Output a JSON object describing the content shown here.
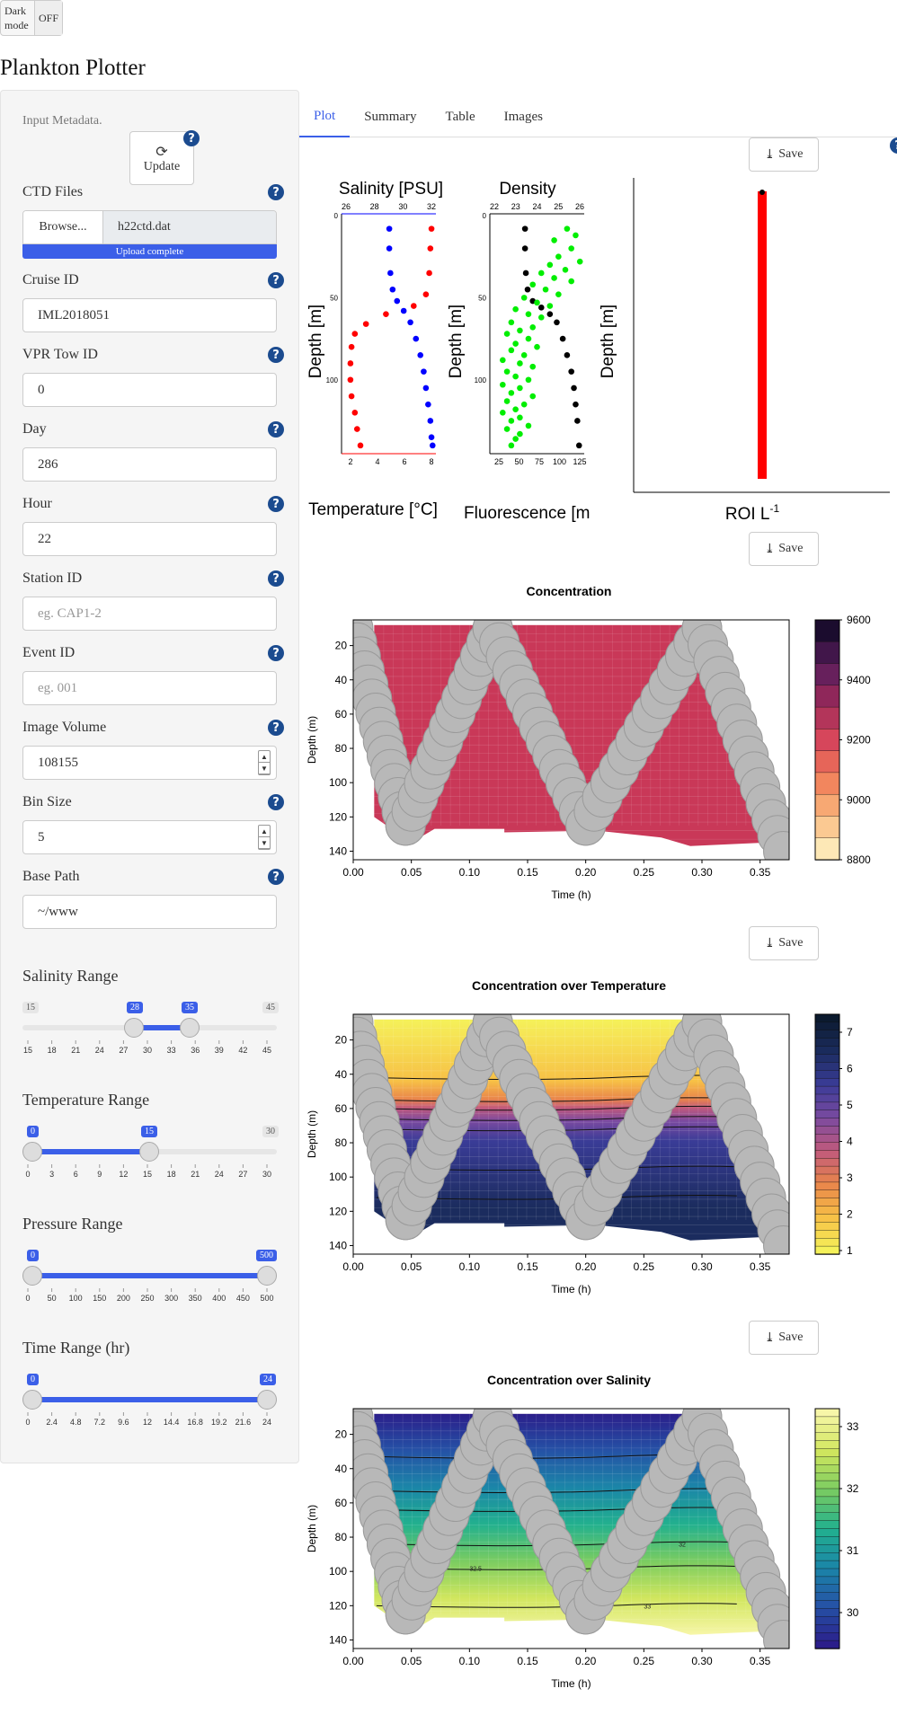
{
  "dark_mode": {
    "label": "Dark mode",
    "state": "OFF"
  },
  "app_title": "Plankton Plotter",
  "sidebar": {
    "input_metadata": "Input Metadata.",
    "update_label": "Update",
    "ctd_files": {
      "label": "CTD Files",
      "browse": "Browse...",
      "filename": "h22ctd.dat",
      "progress": "Upload complete"
    },
    "cruise_id": {
      "label": "Cruise ID",
      "value": "IML2018051"
    },
    "vpr_tow_id": {
      "label": "VPR Tow ID",
      "value": "0"
    },
    "day": {
      "label": "Day",
      "value": "286"
    },
    "hour": {
      "label": "Hour",
      "value": "22"
    },
    "station_id": {
      "label": "Station ID",
      "placeholder": "eg. CAP1-2"
    },
    "event_id": {
      "label": "Event ID",
      "placeholder": "eg. 001"
    },
    "image_volume": {
      "label": "Image Volume",
      "value": "108155"
    },
    "bin_size": {
      "label": "Bin Size",
      "value": "5"
    },
    "base_path": {
      "label": "Base Path",
      "value": "~/www"
    },
    "salinity_range": {
      "label": "Salinity Range",
      "min": "15",
      "max": "45",
      "from": "28",
      "to": "35",
      "ticks": [
        "15",
        "18",
        "21",
        "24",
        "27",
        "30",
        "33",
        "36",
        "39",
        "42",
        "45"
      ]
    },
    "temperature_range": {
      "label": "Temperature Range",
      "min": "0",
      "max": "30",
      "from": "0",
      "to": "15",
      "ticks": [
        "0",
        "3",
        "6",
        "9",
        "12",
        "15",
        "18",
        "21",
        "24",
        "27",
        "30"
      ]
    },
    "pressure_range": {
      "label": "Pressure Range",
      "min": "0",
      "max": "500",
      "from": "0",
      "to": "500",
      "ticks": [
        "0",
        "50",
        "100",
        "150",
        "200",
        "250",
        "300",
        "350",
        "400",
        "450",
        "500"
      ]
    },
    "time_range": {
      "label": "Time Range (hr)",
      "min": "0",
      "max": "24",
      "from": "0",
      "to": "24",
      "ticks": [
        "0",
        "2.4",
        "4.8",
        "7.2",
        "9.6",
        "12",
        "14.4",
        "16.8",
        "19.2",
        "21.6",
        "24"
      ]
    }
  },
  "tabs": [
    "Plot",
    "Summary",
    "Table",
    "Images"
  ],
  "save_label": "Save",
  "profiles": {
    "salinity_title": "Salinity [PSU]",
    "density_title": "Density",
    "temp_xlabel": "Temperature [°C]",
    "fluor_xlabel": "Fluorescence [m",
    "depth_label": "Depth [m]",
    "roi_xlabel": "ROI L",
    "roi_exp": "-1"
  },
  "chart_data": [
    {
      "type": "scatter",
      "title": "Salinity [PSU]",
      "xlabel": "Temperature [°C]",
      "ylabel": "Depth [m]",
      "top_ticks": [
        "26",
        "28",
        "30",
        "32"
      ],
      "bottom_ticks": [
        "2",
        "4",
        "6",
        "8"
      ],
      "y_ticks": [
        "0",
        "50",
        "100"
      ],
      "ylim": [
        0,
        145
      ],
      "series": [
        {
          "color": "#ff0000",
          "points": [
            [
              8.1,
              8
            ],
            [
              8.0,
              20
            ],
            [
              7.9,
              35
            ],
            [
              7.6,
              48
            ],
            [
              6.5,
              55
            ],
            [
              4.0,
              60
            ],
            [
              2.2,
              66
            ],
            [
              1.2,
              72
            ],
            [
              0.9,
              80
            ],
            [
              0.8,
              90
            ],
            [
              0.8,
              100
            ],
            [
              0.9,
              110
            ],
            [
              1.2,
              120
            ],
            [
              1.4,
              130
            ],
            [
              1.7,
              140
            ]
          ]
        },
        {
          "color": "#0000ff",
          "points": [
            [
              4.3,
              8
            ],
            [
              4.3,
              20
            ],
            [
              4.4,
              35
            ],
            [
              4.6,
              45
            ],
            [
              5.0,
              52
            ],
            [
              5.6,
              58
            ],
            [
              6.2,
              65
            ],
            [
              6.7,
              75
            ],
            [
              7.1,
              85
            ],
            [
              7.4,
              95
            ],
            [
              7.6,
              105
            ],
            [
              7.8,
              115
            ],
            [
              8.0,
              125
            ],
            [
              8.1,
              135
            ],
            [
              8.2,
              140
            ]
          ]
        }
      ]
    },
    {
      "type": "scatter",
      "title": "Density",
      "xlabel": "Fluorescence [m",
      "ylabel": "Depth [m]",
      "top_ticks": [
        "22",
        "23",
        "24",
        "25",
        "26"
      ],
      "bottom_ticks": [
        "25",
        "50",
        "75",
        "100",
        "125"
      ],
      "y_ticks": [
        "0",
        "50",
        "100"
      ],
      "ylim": [
        0,
        145
      ],
      "series": [
        {
          "color": "#000000",
          "points": [
            [
              61,
              8
            ],
            [
              61,
              20
            ],
            [
              62,
              35
            ],
            [
              64,
              45
            ],
            [
              70,
              52
            ],
            [
              80,
              56
            ],
            [
              90,
              60
            ],
            [
              98,
              65
            ],
            [
              105,
              75
            ],
            [
              110,
              85
            ],
            [
              115,
              95
            ],
            [
              118,
              105
            ],
            [
              120,
              115
            ],
            [
              122,
              125
            ],
            [
              124,
              140
            ]
          ]
        },
        {
          "color": "#00ee00",
          "points": [
            [
              110,
              8
            ],
            [
              120,
              12
            ],
            [
              95,
              15
            ],
            [
              115,
              20
            ],
            [
              100,
              25
            ],
            [
              125,
              28
            ],
            [
              90,
              30
            ],
            [
              108,
              33
            ],
            [
              80,
              35
            ],
            [
              95,
              38
            ],
            [
              115,
              40
            ],
            [
              70,
              42
            ],
            [
              85,
              45
            ],
            [
              100,
              48
            ],
            [
              60,
              50
            ],
            [
              75,
              53
            ],
            [
              90,
              55
            ],
            [
              50,
              57
            ],
            [
              65,
              60
            ],
            [
              80,
              62
            ],
            [
              45,
              65
            ],
            [
              70,
              68
            ],
            [
              55,
              70
            ],
            [
              40,
              72
            ],
            [
              65,
              75
            ],
            [
              50,
              78
            ],
            [
              75,
              80
            ],
            [
              45,
              82
            ],
            [
              60,
              85
            ],
            [
              35,
              88
            ],
            [
              55,
              90
            ],
            [
              70,
              92
            ],
            [
              40,
              95
            ],
            [
              50,
              98
            ],
            [
              65,
              100
            ],
            [
              35,
              103
            ],
            [
              55,
              105
            ],
            [
              45,
              108
            ],
            [
              70,
              110
            ],
            [
              40,
              113
            ],
            [
              60,
              115
            ],
            [
              50,
              118
            ],
            [
              35,
              120
            ],
            [
              55,
              123
            ],
            [
              45,
              125
            ],
            [
              65,
              128
            ],
            [
              40,
              130
            ],
            [
              55,
              133
            ],
            [
              50,
              136
            ],
            [
              45,
              140
            ]
          ]
        }
      ]
    },
    {
      "type": "line",
      "xlabel": "ROI L-1",
      "ylabel": "Depth [m]",
      "series": [
        {
          "color": "#ff0000",
          "points": [
            [
              9.25,
              7
            ],
            [
              9.25,
              145
            ]
          ]
        }
      ]
    },
    {
      "type": "heatmap",
      "title": "Concentration",
      "xlabel": "Time (h)",
      "ylabel": "Depth (m)",
      "x_ticks": [
        "0.00",
        "0.05",
        "0.10",
        "0.15",
        "0.20",
        "0.25",
        "0.30",
        "0.35"
      ],
      "y_ticks": [
        "20",
        "40",
        "60",
        "80",
        "100",
        "120",
        "140"
      ],
      "colorbar_ticks": [
        "9600",
        "9400",
        "9200",
        "9000",
        "8800"
      ],
      "colors": [
        "#1b0c2e",
        "#5a1d5c",
        "#9c2a5a",
        "#d6465b",
        "#f07a57",
        "#f9b47a",
        "#fde8b6"
      ],
      "fill_color": "#c93858"
    },
    {
      "type": "heatmap",
      "title": "Concentration over Temperature",
      "xlabel": "Time (h)",
      "ylabel": "Depth (m)",
      "x_ticks": [
        "0.00",
        "0.05",
        "0.10",
        "0.15",
        "0.20",
        "0.25",
        "0.30",
        "0.35"
      ],
      "y_ticks": [
        "20",
        "40",
        "60",
        "80",
        "100",
        "120",
        "140"
      ],
      "colorbar_ticks": [
        "7",
        "6",
        "5",
        "4",
        "3",
        "2",
        "1"
      ],
      "colors": [
        "#f5f15a",
        "#f7c046",
        "#e9854b",
        "#c15a7c",
        "#7a4aa0",
        "#3a3c97",
        "#1b2c5e",
        "#0b1a2e"
      ]
    },
    {
      "type": "heatmap",
      "title": "Concentration over Salinity",
      "xlabel": "Time (h)",
      "ylabel": "Depth (m)",
      "x_ticks": [
        "0.00",
        "0.05",
        "0.10",
        "0.15",
        "0.20",
        "0.25",
        "0.30",
        "0.35"
      ],
      "y_ticks": [
        "20",
        "40",
        "60",
        "80",
        "100",
        "120",
        "140"
      ],
      "colorbar_ticks": [
        "33",
        "32",
        "31",
        "30"
      ],
      "contour_labels": [
        "32",
        "32.5",
        "33"
      ],
      "colors": [
        "#2b1e8a",
        "#2552a6",
        "#1b86a8",
        "#22b08e",
        "#7acc61",
        "#d1e65e",
        "#f7f6a8"
      ]
    }
  ]
}
